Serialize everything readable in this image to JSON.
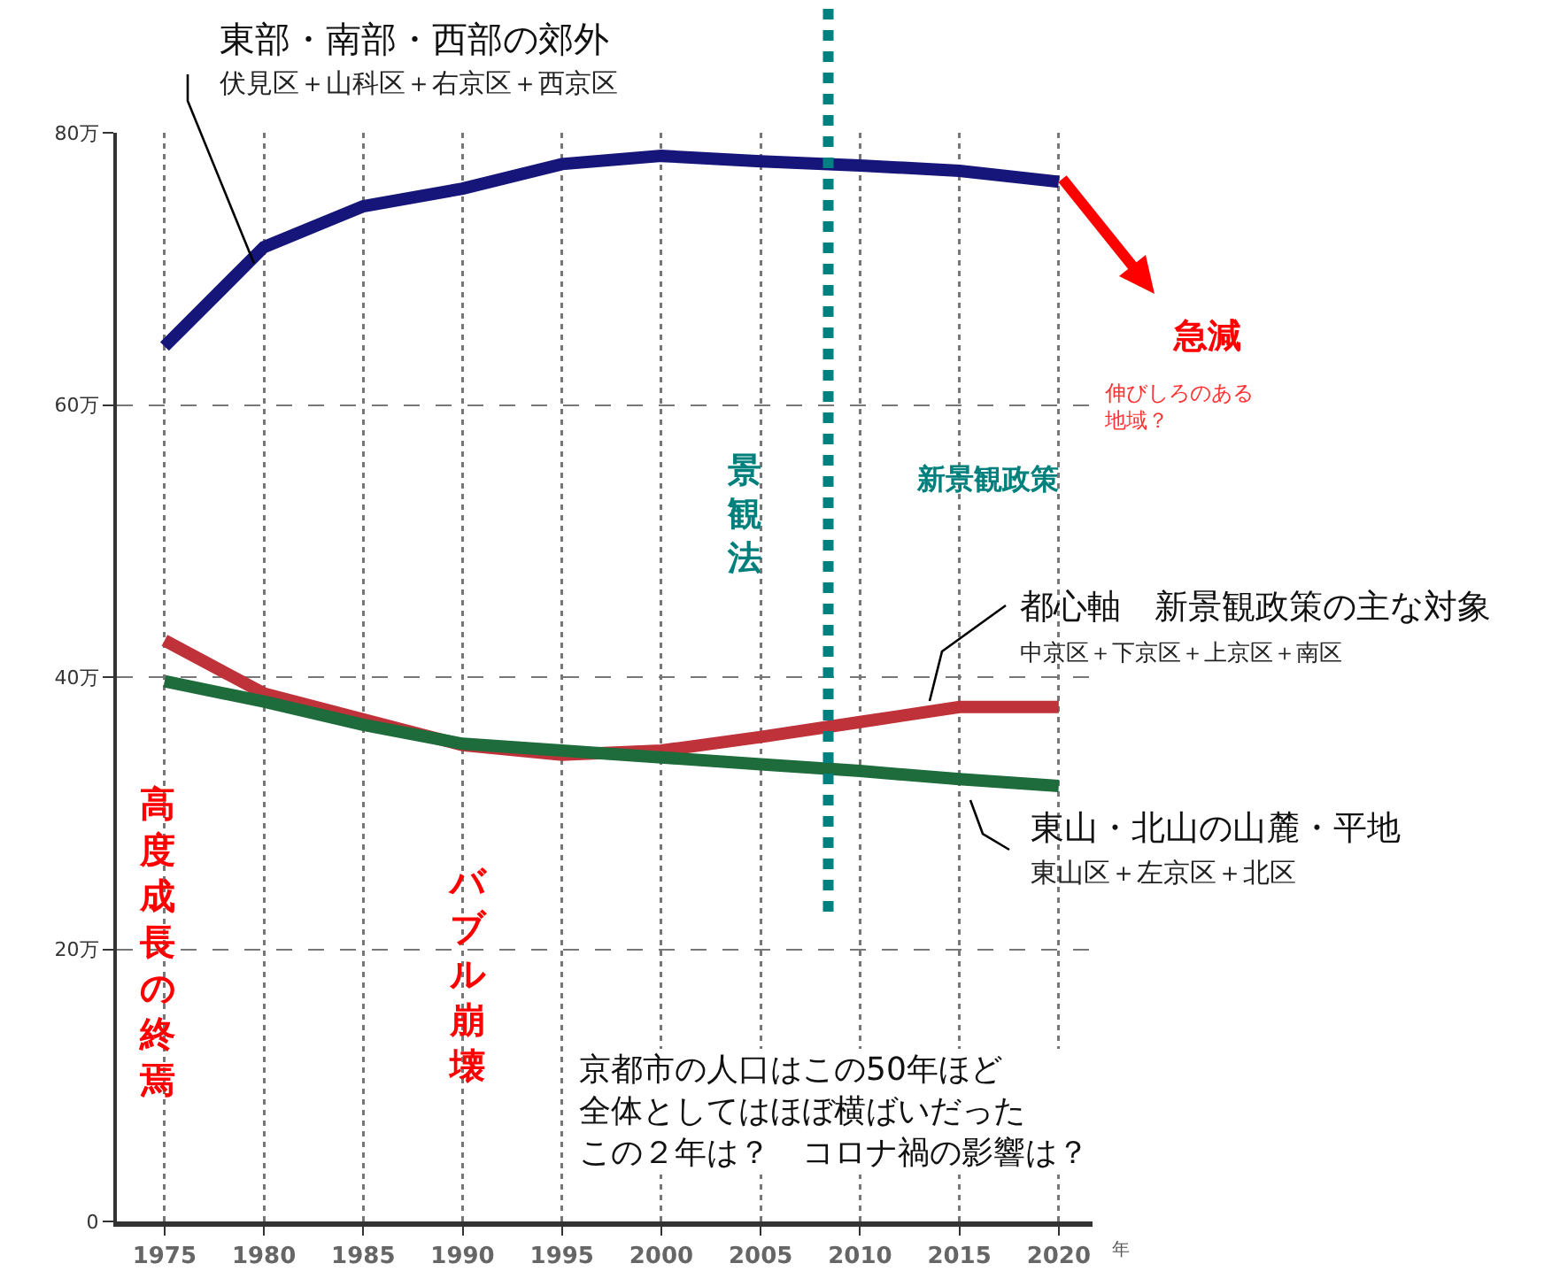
{
  "chart_data": {
    "type": "line",
    "xlabel": "年",
    "x": [
      1975,
      1980,
      1985,
      1990,
      1995,
      2000,
      2005,
      2010,
      2015,
      2020
    ],
    "series": [
      {
        "name": "東部・南部・西部の郊外",
        "color": "#16167a",
        "values": [
          64.3,
          71.6,
          74.6,
          75.9,
          77.7,
          78.3,
          77.9,
          77.6,
          77.2,
          76.4
        ]
      },
      {
        "name": "都心軸　新景観政策の主な対象",
        "color": "#c0323a",
        "values": [
          42.7,
          38.8,
          36.9,
          35.0,
          34.3,
          34.6,
          35.6,
          36.7,
          37.8,
          37.8
        ]
      },
      {
        "name": "東山・北山の山麓・平地",
        "color": "#1e6b3c",
        "values": [
          39.7,
          38.2,
          36.5,
          35.1,
          34.6,
          34.1,
          33.6,
          33.1,
          32.5,
          32.0
        ]
      }
    ],
    "xlim": [
      1972.6,
      2021.7
    ],
    "xticks": [
      1975,
      1980,
      1985,
      1990,
      1995,
      2000,
      2005,
      2010,
      2015,
      2020
    ],
    "ylim": [
      0,
      80
    ],
    "yticks": [
      0,
      {
        "value": 20,
        "label": "20万"
      },
      {
        "value": 40,
        "label": "40万"
      },
      {
        "value": 60,
        "label": "60万"
      },
      {
        "value": 80,
        "label": "80万"
      }
    ],
    "ref_lines": [
      {
        "axis": "x",
        "value": 2008.4,
        "label": null,
        "color": "#008080",
        "line_style": "dotted"
      }
    ],
    "annotations": [
      {
        "text": "伏見区＋山科区＋右京区＋西京区",
        "x": 1979.5,
        "y": 70.4
      },
      "中京区＋下京区＋上京区＋南区",
      "東山区＋左京区＋北区",
      "景観法",
      "新景観政策",
      "急減",
      "伸びしろのある地域？",
      "高度成長の終焉",
      "バブル崩壊",
      "京都市の人口はこの50年ほど全体としてはほぼ横ばいだったこの２年は？　コロナ禍の影響は？"
    ],
    "grid": true,
    "legend": false,
    "marker": "none",
    "line_style": "solid"
  }
}
